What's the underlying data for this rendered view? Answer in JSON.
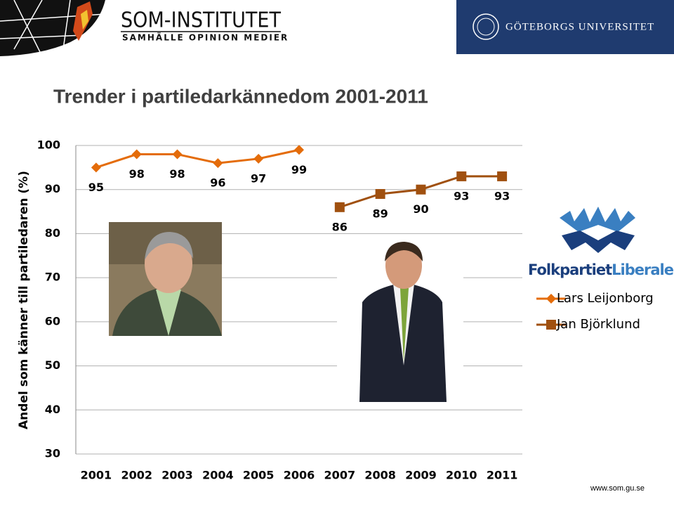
{
  "header": {
    "som_title": "SOM-INSTITUTET",
    "som_subtitle": "SAMHÄLLE OPINION MEDIER",
    "university": "GÖTEBORGS UNIVERSITET"
  },
  "party_logo": {
    "part1": "Folkpartiet",
    "part2": "Liberalerna"
  },
  "footer": "www.som.gu.se",
  "chart_data": {
    "type": "line",
    "title": "Trender i partiledarkännedom 2001-2011",
    "y_label": "Andel som känner till partiledaren (%)",
    "categories": [
      "2001",
      "2002",
      "2003",
      "2004",
      "2005",
      "2006",
      "2007",
      "2008",
      "2009",
      "2010",
      "2011"
    ],
    "series": [
      {
        "name": "Lars Leijonborg",
        "color": "#e46c0a",
        "marker": "diamond",
        "values": [
          95,
          98,
          98,
          96,
          97,
          99,
          null,
          null,
          null,
          null,
          null
        ]
      },
      {
        "name": "Jan Björklund",
        "color": "#a0500f",
        "marker": "square",
        "values": [
          null,
          null,
          null,
          null,
          null,
          null,
          86,
          89,
          90,
          93,
          93
        ]
      }
    ],
    "ylim": [
      30,
      100
    ],
    "yticks": [
      30,
      40,
      50,
      60,
      70,
      80,
      90,
      100
    ],
    "grid": true,
    "legend": "right"
  }
}
